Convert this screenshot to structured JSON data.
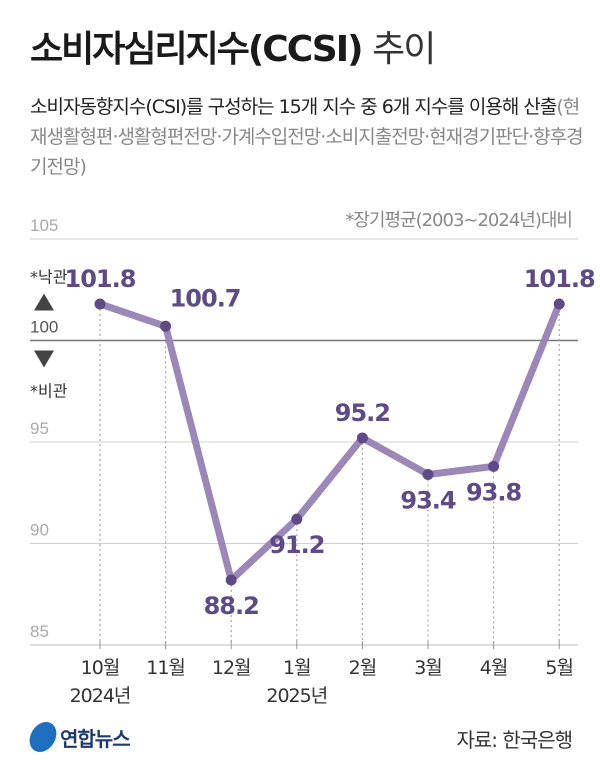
{
  "header": {
    "title_main": "소비자심리지수(CCSI)",
    "title_suffix": "추이",
    "subtitle_main": "소비자동향지수(CSI)를 구성하는 15개 지수 중 6개 지수를 이용해 산출",
    "subtitle_detail": "(현재생활형편·생활형편전망·가계수입전망·소비지출전망·현재경기판단·향후경기전망)",
    "note": "*장기평균(2003~2024년)대비"
  },
  "chart_data": {
    "type": "line",
    "title": "소비자심리지수(CCSI) 추이",
    "categories": [
      "10월",
      "11월",
      "12월",
      "1월",
      "2월",
      "3월",
      "4월",
      "5월"
    ],
    "year_labels": [
      {
        "index": 0,
        "label": "2024년"
      },
      {
        "index": 3,
        "label": "2025년"
      }
    ],
    "values": [
      101.8,
      100.7,
      88.2,
      91.2,
      95.2,
      93.4,
      93.8,
      101.8
    ],
    "data_labels": [
      "101.8",
      "100.7",
      "88.2",
      "91.2",
      "95.2",
      "93.4",
      "93.8",
      "101.8"
    ],
    "ylim": [
      85,
      105
    ],
    "yticks": [
      "105",
      "100",
      "95",
      "90",
      "85"
    ],
    "reference_line": 100,
    "optimism_label": "*낙관",
    "pessimism_label": "*비관",
    "grid": true,
    "line_color": "#9b88b8",
    "marker_color": "#5e4a86",
    "label_color": "#5e4a86"
  },
  "footer": {
    "logo": "연합뉴스",
    "source": "자료: 한국은행"
  }
}
